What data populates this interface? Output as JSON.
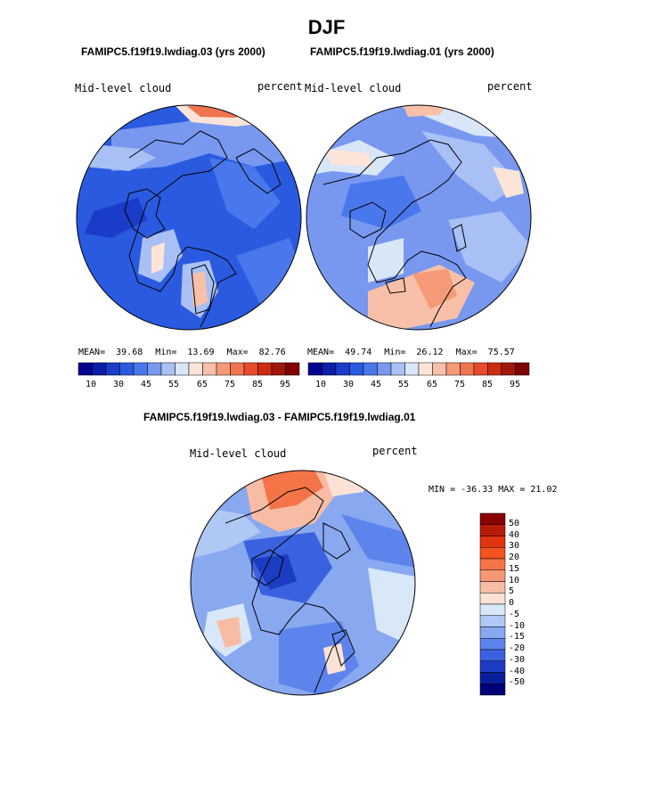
{
  "figure": {
    "season": "DJF",
    "panels": [
      {
        "case_title": "FAMIPC5.f19f19.lwdiag.03 (yrs 2000)",
        "field_label": "Mid-level cloud",
        "units": "percent",
        "stats": {
          "mean_label": "MEAN=",
          "mean": "39.68",
          "min_label": "Min=",
          "min": "13.69",
          "max_label": "Max=",
          "max": "82.76"
        },
        "colorbar_ticks": [
          "10",
          "30",
          "45",
          "55",
          "65",
          "75",
          "85",
          "95"
        ]
      },
      {
        "case_title": "FAMIPC5.f19f19.lwdiag.01 (yrs 2000)",
        "field_label": "Mid-level cloud",
        "units": "percent",
        "stats": {
          "mean_label": "MEAN=",
          "mean": "49.74",
          "min_label": "Min=",
          "min": "26.12",
          "max_label": "Max=",
          "max": "75.57"
        },
        "colorbar_ticks": [
          "10",
          "30",
          "45",
          "55",
          "65",
          "75",
          "85",
          "95"
        ]
      }
    ],
    "difference": {
      "title": "FAMIPC5.f19f19.lwdiag.03 - FAMIPC5.f19f19.lwdiag.01",
      "field_label": "Mid-level cloud",
      "units": "percent",
      "minmax_text": "MIN = -36.33 MAX =  21.02",
      "colorbar_labels": [
        "50",
        "40",
        "30",
        "20",
        "15",
        "10",
        "5",
        "0",
        "-5",
        "-10",
        "-15",
        "-20",
        "-30",
        "-40",
        "-50"
      ]
    },
    "colors": {
      "abs_scale": [
        "#000090",
        "#0a1ea8",
        "#1a3cc8",
        "#2a5ae0",
        "#4a78ec",
        "#7898f0",
        "#a8c0f4",
        "#d8e6f8",
        "#fde4d8",
        "#f8c0a8",
        "#f49a78",
        "#f07450",
        "#e84c2c",
        "#cc2c10",
        "#a01808",
        "#800000"
      ],
      "diff_scale": [
        "#8a0000",
        "#b81a08",
        "#e03410",
        "#f4521e",
        "#f47448",
        "#f49874",
        "#f8bca4",
        "#fce2d6",
        "#d8e8f8",
        "#b0c8f4",
        "#88a8f0",
        "#5c84ec",
        "#3a62e0",
        "#1c3cc4",
        "#0a1e9c",
        "#000078"
      ]
    }
  }
}
